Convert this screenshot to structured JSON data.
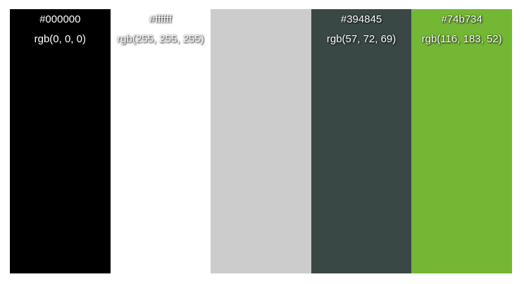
{
  "palette": {
    "swatches": [
      {
        "hex": "#000000",
        "rgb": "rgb(0, 0, 0)",
        "color": "#000000",
        "width_fraction": 0.2,
        "show_labels": true
      },
      {
        "hex": "#ffffff",
        "rgb": "rgb(255, 255, 255)",
        "color": "#ffffff",
        "width_fraction": 0.2,
        "show_labels": true
      },
      {
        "hex": "",
        "rgb": "",
        "color": "#cccccc",
        "width_fraction": 0.2,
        "show_labels": false
      },
      {
        "hex": "#394845",
        "rgb": "rgb(57, 72, 69)",
        "color": "#394845",
        "width_fraction": 0.2,
        "show_labels": true
      },
      {
        "hex": "#74b734",
        "rgb": "rgb(116, 183, 52)",
        "color": "#74b734",
        "width_fraction": 0.2,
        "show_labels": true
      }
    ]
  }
}
